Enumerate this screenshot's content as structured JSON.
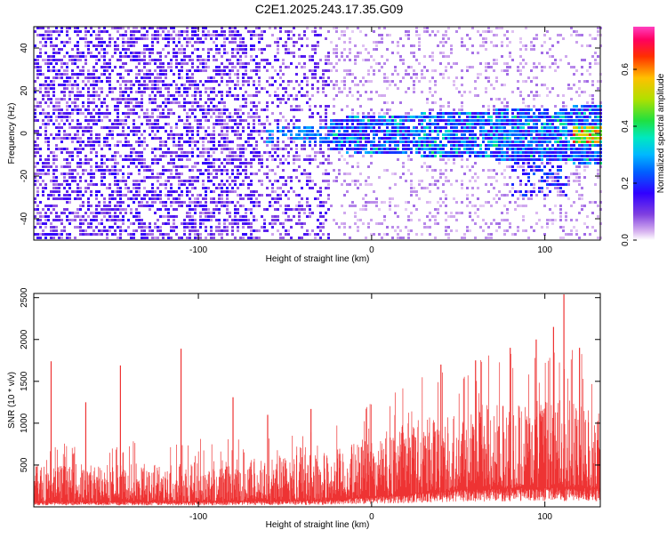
{
  "figure": {
    "title": "C2E1.2025.243.17.35.G09"
  },
  "chart_data": [
    {
      "type": "heatmap",
      "xlabel": "Height of straight line (km)",
      "ylabel": "Frequency (Hz)",
      "xlim": [
        -195,
        132
      ],
      "ylim": [
        -50,
        50
      ],
      "xticks": [
        -100,
        0,
        100
      ],
      "yticks": [
        -40,
        -20,
        0,
        20,
        40
      ],
      "colorbar": {
        "label": "Normalized spectral amplitude",
        "range": [
          0.0,
          0.75
        ],
        "ticks": [
          0.0,
          0.2,
          0.4,
          0.6
        ],
        "colors": [
          "#ffffff",
          "#e8c8f0",
          "#a070e0",
          "#6020e0",
          "#2020ff",
          "#00b0ff",
          "#00e8c0",
          "#40e020",
          "#e0e000",
          "#ff8000",
          "#ff0000",
          "#ff00c0"
        ]
      },
      "regions": [
        {
          "x": [
            -195,
            -65
          ],
          "freq_spread": 50,
          "amplitude": 0.1,
          "description": "scattered purple noise across band"
        },
        {
          "x": [
            -65,
            -25
          ],
          "freq_spread": 50,
          "amplitude": 0.08
        },
        {
          "x": [
            -25,
            132
          ],
          "freq_band": [
            -15,
            15
          ],
          "amplitude": 0.25,
          "peak": {
            "x": 125,
            "freq": 0,
            "amplitude": 0.7
          }
        }
      ]
    },
    {
      "type": "line",
      "xlabel": "Height of straight line (km)",
      "ylabel": "SNR (10 * v/v)",
      "xlim": [
        -195,
        132
      ],
      "ylim": [
        0,
        2550
      ],
      "xticks": [
        -100,
        0,
        100
      ],
      "yticks": [
        500,
        1000,
        1500,
        2000,
        2500
      ],
      "color": "#ee3333",
      "baseline_envelope": [
        {
          "x": -195,
          "low": 60,
          "high": 500
        },
        {
          "x": -100,
          "low": 60,
          "high": 550
        },
        {
          "x": -25,
          "low": 80,
          "high": 650
        },
        {
          "x": 0,
          "low": 120,
          "high": 850
        },
        {
          "x": 20,
          "low": 150,
          "high": 1000
        },
        {
          "x": 50,
          "low": 200,
          "high": 1200
        },
        {
          "x": 80,
          "low": 220,
          "high": 1250
        },
        {
          "x": 110,
          "low": 230,
          "high": 1300
        },
        {
          "x": 132,
          "low": 220,
          "high": 1150
        }
      ],
      "spikes": [
        {
          "x": -185,
          "y": 1740
        },
        {
          "x": -165,
          "y": 1250
        },
        {
          "x": -145,
          "y": 1690
        },
        {
          "x": -110,
          "y": 1890
        },
        {
          "x": -80,
          "y": 1310
        },
        {
          "x": -60,
          "y": 1100
        },
        {
          "x": -35,
          "y": 1170
        },
        {
          "x": 40,
          "y": 1700
        },
        {
          "x": 60,
          "y": 1750
        },
        {
          "x": 80,
          "y": 1900
        },
        {
          "x": 95,
          "y": 2000
        },
        {
          "x": 105,
          "y": 2150
        },
        {
          "x": 111,
          "y": 2540
        },
        {
          "x": 120,
          "y": 1900
        }
      ]
    }
  ]
}
